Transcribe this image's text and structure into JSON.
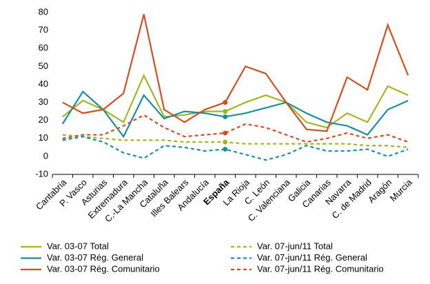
{
  "chart_data": {
    "type": "line",
    "categories": [
      "Cantabria",
      "P. Vasco",
      "Asturias",
      "Extremadura",
      "C.-La Mancha",
      "Cataluña",
      "Illes Balears",
      "Andalucía",
      "España",
      "La Rioja",
      "C. León",
      "C. Valenciana",
      "Galicia",
      "Canarias",
      "Navarra",
      "C. de Madrid",
      "Aragón",
      "Murcia"
    ],
    "series": [
      {
        "name": "Var. 03-07 Total",
        "color": "#a3b51f",
        "dash": false,
        "values": [
          22,
          31,
          26,
          19,
          45,
          22,
          23,
          25,
          25,
          30,
          34,
          30,
          19,
          16,
          24,
          19,
          39,
          34
        ]
      },
      {
        "name": "Var. 03-07 Rég. General",
        "color": "#1a8ea0",
        "dash": false,
        "values": [
          18,
          36,
          26,
          11,
          34,
          21,
          25,
          24,
          22,
          24,
          27,
          30,
          24,
          19,
          17,
          12,
          26,
          31
        ]
      },
      {
        "name": "Var. 03-07 Rég. Comunitario",
        "color": "#d14e1f",
        "dash": false,
        "values": [
          30,
          24,
          26,
          35,
          79,
          26,
          19,
          26,
          30,
          50,
          46,
          30,
          15,
          14,
          44,
          37,
          73,
          45
        ]
      },
      {
        "name": "Var. 07-jun/11 Total",
        "color": "#a3b51f",
        "dash": true,
        "values": [
          12,
          11,
          10,
          9,
          9,
          9,
          8,
          8,
          8,
          7,
          7,
          7,
          7,
          7,
          7,
          6,
          6,
          5
        ]
      },
      {
        "name": "Var. 07-jun/11 Rég. General",
        "color": "#1a8ea0",
        "dash": true,
        "values": [
          9,
          11,
          8,
          2,
          -1,
          6,
          5,
          3,
          4,
          1,
          -2,
          1,
          6,
          3,
          3,
          4,
          0,
          4
        ]
      },
      {
        "name": "Var. 07-jun/11 Rég. Comunitario",
        "color": "#d14e1f",
        "dash": true,
        "values": [
          10,
          12,
          12,
          17,
          23,
          16,
          11,
          12,
          13,
          18,
          16,
          12,
          8,
          10,
          13,
          10,
          12,
          8
        ]
      }
    ],
    "ylim": [
      -10,
      80
    ],
    "yticks": [
      -10,
      0,
      10,
      20,
      30,
      40,
      50,
      60,
      70,
      80
    ],
    "grid": false
  }
}
